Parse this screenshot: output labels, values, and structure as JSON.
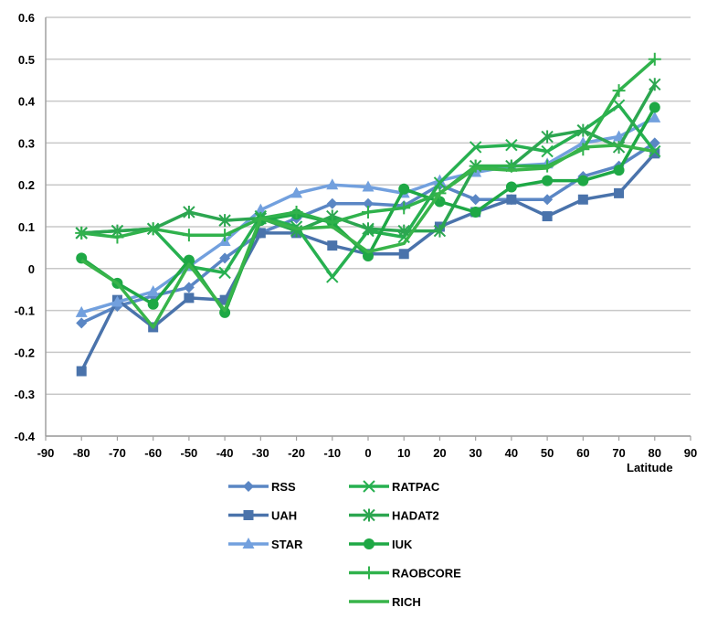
{
  "chart_data": {
    "type": "line",
    "title": "",
    "xlabel": "Latitude",
    "ylabel": "",
    "xlim": [
      -90,
      90
    ],
    "ylim": [
      -0.4,
      0.6
    ],
    "grid": "horizontal",
    "legend_position": "bottom",
    "x_ticks": [
      "-90",
      "-80",
      "-70",
      "-60",
      "-50",
      "-40",
      "-30",
      "-20",
      "-10",
      "0",
      "10",
      "20",
      "30",
      "40",
      "50",
      "60",
      "70",
      "80",
      "90"
    ],
    "y_ticks": [
      "-0.4",
      "-0.3",
      "-0.2",
      "-0.1",
      "0",
      "0.1",
      "0.2",
      "0.3",
      "0.4",
      "0.5",
      "0.6"
    ],
    "x": [
      -80,
      -70,
      -60,
      -50,
      -40,
      -30,
      -20,
      -10,
      0,
      10,
      20,
      30,
      40,
      50,
      60,
      70,
      80
    ],
    "series": [
      {
        "name": "RSS",
        "color": "#5a86c4",
        "marker": "diamond",
        "values": [
          -0.13,
          -0.09,
          -0.065,
          -0.045,
          0.025,
          0.085,
          0.12,
          0.155,
          0.155,
          0.15,
          0.2,
          0.165,
          0.165,
          0.165,
          0.22,
          0.245,
          0.3
        ]
      },
      {
        "name": "UAH",
        "color": "#4a73ab",
        "marker": "square",
        "values": [
          -0.245,
          -0.075,
          -0.14,
          -0.07,
          -0.075,
          0.085,
          0.085,
          0.055,
          0.035,
          0.035,
          0.1,
          0.135,
          0.165,
          0.125,
          0.165,
          0.18,
          0.275
        ]
      },
      {
        "name": "STAR",
        "color": "#72a0de",
        "marker": "triangle",
        "values": [
          -0.105,
          -0.08,
          -0.055,
          0.005,
          0.065,
          0.14,
          0.18,
          0.2,
          0.195,
          0.18,
          0.21,
          0.23,
          0.245,
          0.25,
          0.3,
          0.315,
          0.36
        ]
      },
      {
        "name": "RATPAC",
        "color": "#27b050",
        "marker": "x",
        "values": [
          0.085,
          0.09,
          0.095,
          0.005,
          -0.01,
          0.125,
          0.1,
          -0.02,
          0.09,
          0.075,
          0.205,
          0.29,
          0.295,
          0.28,
          0.33,
          0.39,
          0.28
        ]
      },
      {
        "name": "HADAT2",
        "color": "#2ca650",
        "marker": "asterisk",
        "values": [
          0.085,
          0.09,
          0.095,
          0.135,
          0.115,
          0.12,
          0.09,
          0.125,
          0.095,
          0.09,
          0.09,
          0.245,
          0.245,
          0.315,
          0.33,
          0.29,
          0.44
        ]
      },
      {
        "name": "IUK",
        "color": "#1ea845",
        "marker": "circle",
        "values": [
          0.025,
          -0.035,
          -0.085,
          0.02,
          -0.105,
          0.115,
          0.13,
          0.11,
          0.03,
          0.19,
          0.16,
          0.135,
          0.195,
          0.21,
          0.21,
          0.235,
          0.385
        ]
      },
      {
        "name": "RAOBCORE",
        "color": "#30b24c",
        "marker": "plus",
        "values": [
          0.085,
          0.075,
          0.095,
          0.08,
          0.08,
          0.12,
          0.135,
          0.11,
          0.135,
          0.145,
          0.18,
          0.245,
          0.245,
          0.245,
          0.285,
          0.425,
          0.5
        ]
      },
      {
        "name": "RICH",
        "color": "#38b44a",
        "marker": "none",
        "values": [
          0.02,
          -0.035,
          -0.14,
          0.01,
          -0.1,
          0.12,
          0.095,
          0.1,
          0.04,
          0.06,
          0.18,
          0.24,
          0.235,
          0.24,
          0.29,
          0.295,
          0.28
        ]
      }
    ]
  }
}
